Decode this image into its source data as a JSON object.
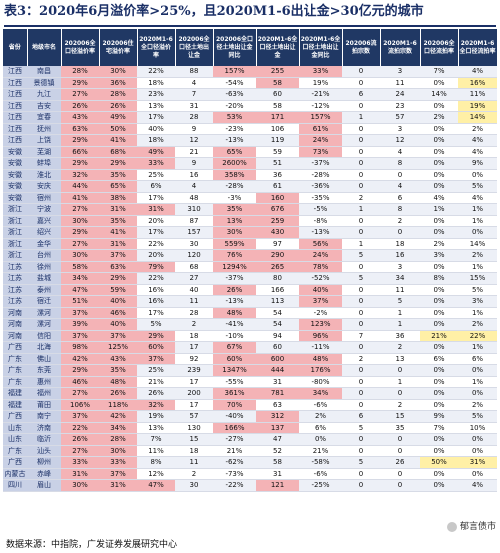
{
  "title": "表3：2020年6月溢价率>25%，且2020M1-6出让金>30亿元的城市",
  "headers": [
    "省份",
    "地级市名",
    "202006全口径溢价率",
    "202006住宅溢价率",
    "2020M1-6全口径溢价率",
    "202006全口径土地出让金",
    "202006全口径土地出让金同比",
    "2020M1-6全口径土地出让金",
    "2020M1-6全口径土地出让金同比",
    "202006流拍宗数",
    "2020M1-6流拍宗数",
    "202006全口径流拍率",
    "2020M1-6全口径流拍率"
  ],
  "rows": [
    [
      "江西",
      "南昌",
      "28%",
      "30%",
      "22%",
      "88",
      "157%",
      "255",
      "33%",
      "0",
      "3",
      "7%",
      "4%"
    ],
    [
      "江西",
      "景德镇",
      "29%",
      "36%",
      "18%",
      "4",
      "-54%",
      "58",
      "19%",
      "0",
      "11",
      "0%",
      "16%"
    ],
    [
      "江西",
      "九江",
      "27%",
      "28%",
      "23%",
      "7",
      "-63%",
      "60",
      "-21%",
      "6",
      "24",
      "14%",
      "11%"
    ],
    [
      "江西",
      "吉安",
      "26%",
      "26%",
      "13%",
      "31",
      "-20%",
      "58",
      "-12%",
      "0",
      "23",
      "0%",
      "19%"
    ],
    [
      "江西",
      "宜春",
      "43%",
      "49%",
      "17%",
      "28",
      "53%",
      "171",
      "157%",
      "1",
      "57",
      "2%",
      "14%"
    ],
    [
      "江西",
      "抚州",
      "63%",
      "50%",
      "40%",
      "9",
      "-23%",
      "106",
      "61%",
      "0",
      "3",
      "0%",
      "2%"
    ],
    [
      "江西",
      "上饶",
      "29%",
      "41%",
      "18%",
      "12",
      "-13%",
      "119",
      "24%",
      "0",
      "12",
      "0%",
      "4%"
    ],
    [
      "安徽",
      "芜湖",
      "66%",
      "68%",
      "49%",
      "21",
      "65%",
      "59",
      "73%",
      "0",
      "4",
      "0%",
      "4%"
    ],
    [
      "安徽",
      "蚌埠",
      "29%",
      "29%",
      "33%",
      "9",
      "2600%",
      "51",
      "-37%",
      "0",
      "8",
      "0%",
      "9%"
    ],
    [
      "安徽",
      "淮北",
      "32%",
      "35%",
      "25%",
      "16",
      "358%",
      "36",
      "-28%",
      "0",
      "0",
      "0%",
      "0%"
    ],
    [
      "安徽",
      "安庆",
      "44%",
      "65%",
      "6%",
      "4",
      "-28%",
      "61",
      "-36%",
      "0",
      "4",
      "0%",
      "5%"
    ],
    [
      "安徽",
      "宿州",
      "41%",
      "38%",
      "17%",
      "48",
      "-3%",
      "160",
      "-35%",
      "2",
      "6",
      "4%",
      "4%"
    ],
    [
      "浙江",
      "宁波",
      "27%",
      "31%",
      "31%",
      "310",
      "35%",
      "676",
      "-5%",
      "1",
      "8",
      "1%",
      "1%"
    ],
    [
      "浙江",
      "嘉兴",
      "30%",
      "35%",
      "20%",
      "87",
      "13%",
      "259",
      "-8%",
      "0",
      "2",
      "0%",
      "1%"
    ],
    [
      "浙江",
      "绍兴",
      "29%",
      "41%",
      "17%",
      "157",
      "30%",
      "430",
      "-13%",
      "0",
      "0",
      "0%",
      "0%"
    ],
    [
      "浙江",
      "金华",
      "27%",
      "31%",
      "22%",
      "30",
      "559%",
      "97",
      "56%",
      "1",
      "18",
      "2%",
      "14%"
    ],
    [
      "浙江",
      "台州",
      "30%",
      "37%",
      "20%",
      "120",
      "76%",
      "290",
      "24%",
      "5",
      "16",
      "3%",
      "2%"
    ],
    [
      "江苏",
      "徐州",
      "58%",
      "63%",
      "79%",
      "68",
      "1294%",
      "265",
      "78%",
      "0",
      "3",
      "0%",
      "1%"
    ],
    [
      "江苏",
      "盐城",
      "34%",
      "29%",
      "22%",
      "27",
      "-37%",
      "80",
      "-52%",
      "5",
      "34",
      "8%",
      "15%"
    ],
    [
      "江苏",
      "泰州",
      "47%",
      "59%",
      "16%",
      "40",
      "26%",
      "166",
      "40%",
      "0",
      "11",
      "0%",
      "5%"
    ],
    [
      "江苏",
      "宿迁",
      "51%",
      "40%",
      "16%",
      "11",
      "-13%",
      "113",
      "37%",
      "0",
      "5",
      "0%",
      "3%"
    ],
    [
      "河南",
      "漯河",
      "37%",
      "46%",
      "17%",
      "28",
      "48%",
      "54",
      "-2%",
      "0",
      "1",
      "0%",
      "1%"
    ],
    [
      "河南",
      "漯河",
      "39%",
      "40%",
      "5%",
      "2",
      "-41%",
      "54",
      "123%",
      "0",
      "1",
      "0%",
      "2%"
    ],
    [
      "河南",
      "信阳",
      "37%",
      "37%",
      "29%",
      "18",
      "-10%",
      "94",
      "96%",
      "7",
      "36",
      "21%",
      "22%"
    ],
    [
      "广西",
      "北海",
      "98%",
      "125%",
      "60%",
      "17",
      "67%",
      "60",
      "-11%",
      "0",
      "2",
      "0%",
      "1%"
    ],
    [
      "广东",
      "佛山",
      "42%",
      "43%",
      "37%",
      "92",
      "60%",
      "600",
      "48%",
      "2",
      "13",
      "6%",
      "6%"
    ],
    [
      "广东",
      "东莞",
      "29%",
      "35%",
      "25%",
      "239",
      "1347%",
      "444",
      "176%",
      "0",
      "0",
      "0%",
      "0%"
    ],
    [
      "广东",
      "惠州",
      "46%",
      "48%",
      "21%",
      "17",
      "-55%",
      "31",
      "-80%",
      "0",
      "1",
      "0%",
      "1%"
    ],
    [
      "福建",
      "福州",
      "27%",
      "26%",
      "26%",
      "200",
      "361%",
      "781",
      "34%",
      "0",
      "0",
      "0%",
      "0%"
    ],
    [
      "福建",
      "莆田",
      "106%",
      "118%",
      "32%",
      "17",
      "70%",
      "63",
      "-6%",
      "0",
      "2",
      "0%",
      "2%"
    ],
    [
      "广西",
      "南宁",
      "37%",
      "42%",
      "19%",
      "57",
      "-40%",
      "312",
      "2%",
      "6",
      "15",
      "9%",
      "5%"
    ],
    [
      "山东",
      "济南",
      "22%",
      "34%",
      "13%",
      "130",
      "166%",
      "137",
      "6%",
      "5",
      "35",
      "7%",
      "10%"
    ],
    [
      "山东",
      "临沂",
      "26%",
      "28%",
      "7%",
      "15",
      "-27%",
      "47",
      "0%",
      "0",
      "0",
      "0%",
      "0%"
    ],
    [
      "广东",
      "汕头",
      "27%",
      "30%",
      "11%",
      "18",
      "21%",
      "52",
      "21%",
      "0",
      "0",
      "0%",
      "0%"
    ],
    [
      "广西",
      "柳州",
      "33%",
      "33%",
      "8%",
      "11",
      "-62%",
      "58",
      "-58%",
      "5",
      "26",
      "50%",
      "31%"
    ],
    [
      "内蒙古",
      "赤峰",
      "31%",
      "37%",
      "12%",
      "2",
      "-73%",
      "31",
      "-6%",
      "0",
      "0",
      "0%",
      "0%"
    ],
    [
      "四川",
      "眉山",
      "30%",
      "31%",
      "47%",
      "30",
      "-22%",
      "121",
      "-25%",
      "0",
      "0",
      "0%",
      "4%"
    ]
  ],
  "source": "数据来源：中指院，广发证券发展研究中心",
  "watermark": "郁言债市"
}
